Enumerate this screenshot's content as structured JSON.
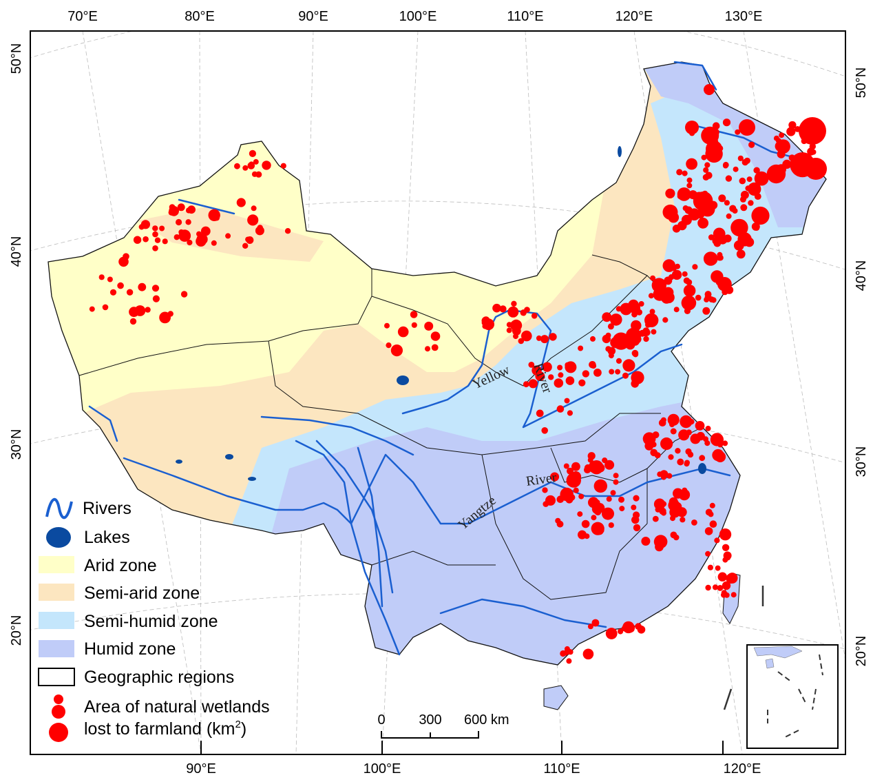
{
  "map": {
    "top_ticks": [
      "70°E",
      "80°E",
      "90°E",
      "100°E",
      "110°E",
      "120°E",
      "130°E"
    ],
    "bottom_ticks": [
      "90°E",
      "100°E",
      "110°E",
      "120°E"
    ],
    "left_ticks": [
      "50°N",
      "40°N",
      "30°N",
      "20°N"
    ],
    "right_ticks": [
      "50°N",
      "40°N",
      "30°N",
      "20°N"
    ],
    "river_labels": {
      "yellow_1": "Yellow",
      "yellow_2": "River",
      "yangtze_1": "Yangtze",
      "yangtze_2": "River"
    },
    "scale_bar": {
      "labels": [
        "0",
        "300",
        "600 km"
      ]
    }
  },
  "legend": {
    "rivers": "Rivers",
    "lakes": "Lakes",
    "arid": "Arid zone",
    "semi_arid": "Semi-arid zone",
    "semi_humid": "Semi-humid zone",
    "humid": "Humid zone",
    "regions": "Geographic regions",
    "wetlands_1": "Area of natural wetlands",
    "wetlands_2": "lost to farmland (km",
    "wetlands_sup": "2",
    "wetlands_3": ")"
  },
  "colors": {
    "arid": "#FFFFC8",
    "semi_arid": "#FCE6C0",
    "semi_humid": "#C4E6FC",
    "humid": "#C0CCF8",
    "river": "#1A5FD0",
    "lake": "#0A4AA0",
    "wetland_loss": "#FF0000"
  }
}
